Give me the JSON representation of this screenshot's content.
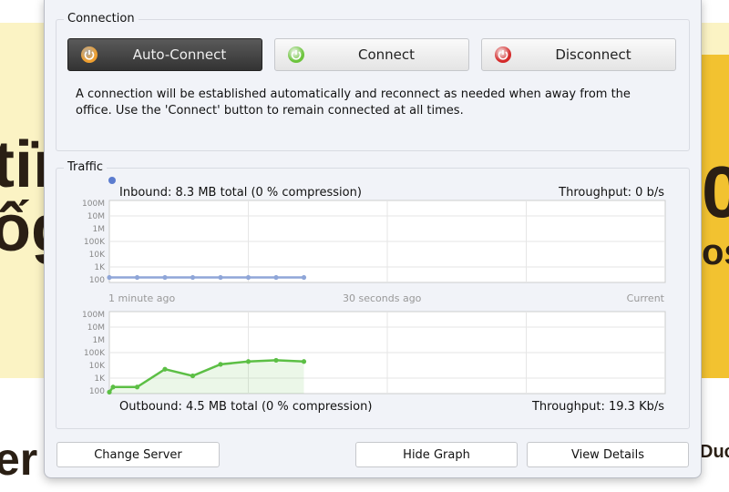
{
  "background": {
    "left_text_1": "tiï",
    "left_text_2": "ốg",
    "right_text_1": "0",
    "right_text_2": "os",
    "bottom_left": "er",
    "bottom_right": "Duc"
  },
  "connection": {
    "legend": "Connection",
    "buttons": [
      {
        "label": "Auto-Connect",
        "icon": "power-icon",
        "color": "#f0a030",
        "active": true
      },
      {
        "label": "Connect",
        "icon": "power-icon",
        "color": "#6cc43c",
        "active": false
      },
      {
        "label": "Disconnect",
        "icon": "power-icon",
        "color": "#d42a2a",
        "active": false
      }
    ],
    "description": "A connection will be established automatically and reconnect as needed when away from the office. Use the 'Connect' button to remain connected at all times."
  },
  "traffic": {
    "legend": "Traffic",
    "inbound_label": "Inbound: 8.3 MB total (0 % compression)",
    "inbound_throughput": "Throughput: 0 b/s",
    "outbound_label": "Outbound: 4.5 MB total (0 % compression)",
    "outbound_throughput": "Throughput: 19.3 Kb/s",
    "time_labels": [
      "1 minute ago",
      "30 seconds ago",
      "Current"
    ]
  },
  "chart_data": [
    {
      "type": "line",
      "name": "inbound",
      "yscale": "log",
      "ylim": [
        100,
        100000000
      ],
      "yticks": [
        "100M",
        "10M",
        "1M",
        "100K",
        "10K",
        "1K",
        "100"
      ],
      "xlim": [
        0,
        60
      ],
      "color": "#8fa6d8",
      "x": [
        0,
        3,
        6,
        9,
        12,
        15,
        18,
        21
      ],
      "values": [
        150,
        150,
        150,
        150,
        150,
        150,
        150,
        150
      ]
    },
    {
      "type": "area",
      "name": "outbound",
      "yscale": "log",
      "ylim": [
        100,
        100000000
      ],
      "yticks": [
        "100M",
        "10M",
        "1M",
        "100K",
        "10K",
        "1K",
        "100"
      ],
      "xlim": [
        0,
        60
      ],
      "color": "#5cbf45",
      "x": [
        0,
        0.4,
        3,
        6,
        9,
        12,
        15,
        18,
        21
      ],
      "values": [
        80,
        200,
        200,
        5000,
        1500,
        12000,
        20000,
        25000,
        20000
      ]
    }
  ],
  "footer": {
    "change_server": "Change Server",
    "hide_graph": "Hide Graph",
    "view_details": "View Details"
  }
}
